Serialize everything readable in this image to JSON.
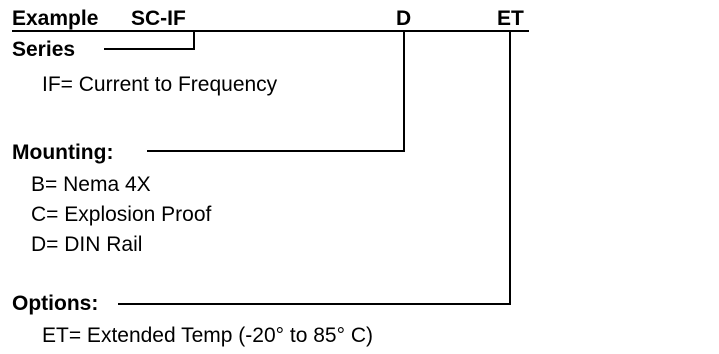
{
  "header": {
    "example_label": "Example",
    "model_code": "SC-IF",
    "mounting_code": "D",
    "options_code": "ET"
  },
  "sections": [
    {
      "heading": "Series",
      "items": [
        "IF= Current to Frequency"
      ]
    },
    {
      "heading": "Mounting:",
      "items": [
        "B= Nema 4X",
        "C= Explosion Proof",
        "D= DIN Rail"
      ]
    },
    {
      "heading": "Options:",
      "items": [
        "ET= Extended Temp (-20° to 85° C)"
      ]
    }
  ]
}
